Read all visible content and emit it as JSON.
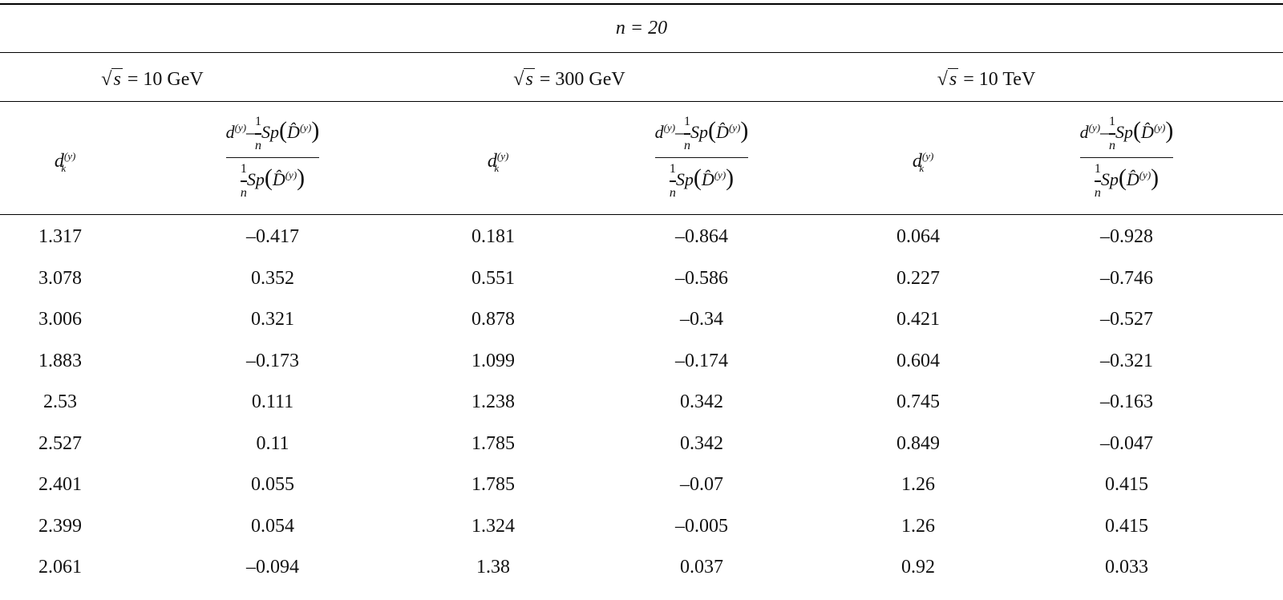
{
  "table": {
    "header": {
      "n_label": "n = 20",
      "groups": [
        {
          "label": "10 GeV",
          "symbol": "s"
        },
        {
          "label": "300 GeV",
          "symbol": "s"
        },
        {
          "label": "10 TeV",
          "symbol": "s"
        }
      ],
      "col_d": "d",
      "col_d_sub": "k",
      "col_d_sup": "(y)",
      "col_frac_num_one": "1",
      "col_frac_n": "n",
      "col_frac_sp": "Sp",
      "col_frac_D": "D̂",
      "col_frac_D_sup": "(y)"
    },
    "rows": [
      [
        "1.317",
        "–0.417",
        "0.181",
        "–0.864",
        "0.064",
        "–0.928"
      ],
      [
        "3.078",
        "0.352",
        "0.551",
        "–0.586",
        "0.227",
        "–0.746"
      ],
      [
        "3.006",
        "0.321",
        "0.878",
        "–0.34",
        "0.421",
        "–0.527"
      ],
      [
        "1.883",
        "–0.173",
        "1.099",
        "–0.174",
        "0.604",
        "–0.321"
      ],
      [
        "2.53",
        "0.111",
        "1.238",
        "0.342",
        "0.745",
        "–0.163"
      ],
      [
        "2.527",
        "0.11",
        "1.785",
        "0.342",
        "0.849",
        "–0.047"
      ],
      [
        "2.401",
        "0.055",
        "1.785",
        "–0.07",
        "1.26",
        "0.415"
      ],
      [
        "2.399",
        "0.054",
        "1.324",
        "–0.005",
        "1.26",
        "0.415"
      ],
      [
        "2.061",
        "–0.094",
        "1.38",
        "0.037",
        "0.92",
        "0.033"
      ]
    ]
  }
}
